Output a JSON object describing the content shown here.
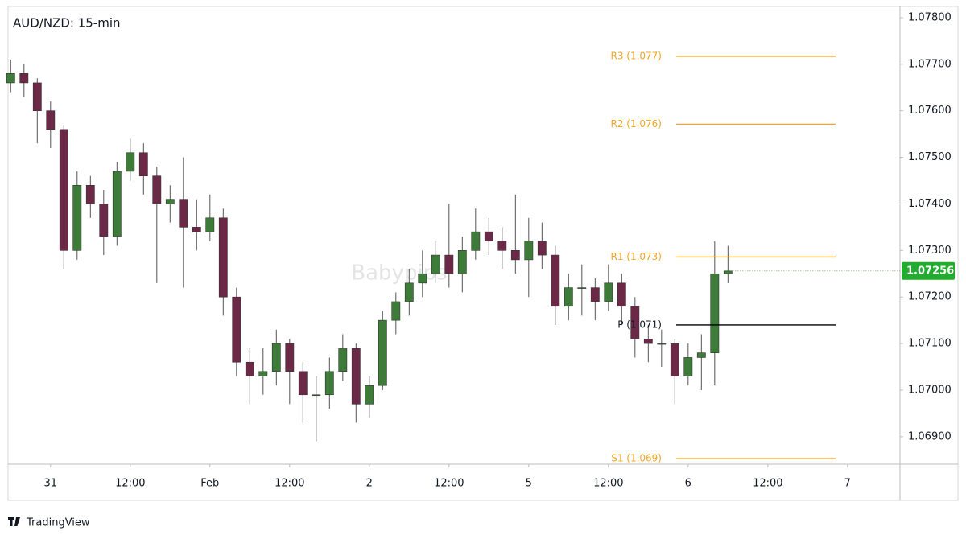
{
  "chart_data": {
    "type": "candlestick",
    "title": "AUD/NZD: 15-min",
    "watermark": "Babypips",
    "footer": "TradingView",
    "up_color": "#3d7b38",
    "down_color": "#6b2847",
    "x": [
      -6,
      -4,
      -2,
      0,
      2,
      4,
      6,
      8,
      10,
      12,
      14,
      16,
      18,
      20,
      22,
      24,
      26,
      28,
      30,
      32,
      34,
      36,
      38,
      40,
      42,
      44,
      46,
      48,
      50,
      52,
      54,
      56,
      58,
      60,
      62,
      64,
      66,
      68,
      70,
      72,
      74,
      76,
      78,
      80,
      82,
      84,
      86,
      88,
      90,
      92,
      94,
      96,
      98,
      100,
      102
    ],
    "open": [
      1.0766,
      1.0768,
      1.0766,
      1.076,
      1.0756,
      1.073,
      1.0744,
      1.074,
      1.0733,
      1.0747,
      1.0751,
      1.0746,
      1.074,
      1.0741,
      1.0735,
      1.0734,
      1.0737,
      1.072,
      1.0706,
      1.0703,
      1.0704,
      1.071,
      1.0704,
      1.0699,
      1.0699,
      1.0704,
      1.0709,
      1.0697,
      1.0701,
      1.0715,
      1.0719,
      1.0723,
      1.0725,
      1.0729,
      1.0725,
      1.073,
      1.0734,
      1.0732,
      1.073,
      1.0728,
      1.0732,
      1.0729,
      1.0718,
      1.0722,
      1.0722,
      1.0719,
      1.0723,
      1.0718,
      1.0711,
      1.071,
      1.071,
      1.0703,
      1.0707,
      1.0708,
      1.0725
    ],
    "high": [
      1.0771,
      1.077,
      1.0767,
      1.0762,
      1.0757,
      1.0747,
      1.0746,
      1.0743,
      1.0749,
      1.0754,
      1.0753,
      1.0748,
      1.0744,
      1.075,
      1.0741,
      1.0742,
      1.0739,
      1.0722,
      1.0709,
      1.0709,
      1.0713,
      1.0711,
      1.0706,
      1.0703,
      1.0707,
      1.0712,
      1.071,
      1.0703,
      1.0717,
      1.0721,
      1.0726,
      1.073,
      1.0732,
      1.074,
      1.0733,
      1.0739,
      1.0737,
      1.0735,
      1.0742,
      1.0737,
      1.0736,
      1.0731,
      1.0725,
      1.0727,
      1.0724,
      1.0727,
      1.0725,
      1.072,
      1.0714,
      1.0713,
      1.0711,
      1.071,
      1.0712,
      1.0732,
      1.0731
    ],
    "low": [
      1.0764,
      1.0763,
      1.0753,
      1.0752,
      1.0726,
      1.0728,
      1.0737,
      1.0729,
      1.0731,
      1.0745,
      1.0742,
      1.0723,
      1.0736,
      1.0722,
      1.073,
      1.0732,
      1.0716,
      1.0703,
      1.0697,
      1.0699,
      1.0701,
      1.0697,
      1.0693,
      1.0689,
      1.0696,
      1.0702,
      1.0693,
      1.0694,
      1.07,
      1.0712,
      1.0716,
      1.072,
      1.0723,
      1.0722,
      1.0721,
      1.0728,
      1.0729,
      1.0726,
      1.0725,
      1.072,
      1.0726,
      1.0714,
      1.0715,
      1.0716,
      1.0715,
      1.0717,
      1.0714,
      1.0707,
      1.0706,
      1.0705,
      1.0697,
      1.0701,
      1.07,
      1.0701,
      1.0723
    ],
    "close": [
      1.0768,
      1.0766,
      1.076,
      1.0756,
      1.073,
      1.0744,
      1.074,
      1.0733,
      1.0747,
      1.0751,
      1.0746,
      1.074,
      1.0741,
      1.0735,
      1.0734,
      1.0737,
      1.072,
      1.0706,
      1.0703,
      1.0704,
      1.071,
      1.0704,
      1.0699,
      1.0699,
      1.0704,
      1.0709,
      1.0697,
      1.0701,
      1.0715,
      1.0719,
      1.0723,
      1.0725,
      1.0729,
      1.0725,
      1.073,
      1.0734,
      1.0732,
      1.073,
      1.0728,
      1.0732,
      1.0729,
      1.0718,
      1.0722,
      1.0722,
      1.0719,
      1.0723,
      1.0718,
      1.0711,
      1.071,
      1.071,
      1.0703,
      1.0707,
      1.0708,
      1.0725,
      1.07256
    ],
    "xlim": [
      -6.4,
      127.9
    ],
    "xticks": [
      {
        "value": 0,
        "label": "31"
      },
      {
        "value": 12,
        "label": "12:00"
      },
      {
        "value": 24,
        "label": "Feb"
      },
      {
        "value": 36,
        "label": "12:00"
      },
      {
        "value": 48,
        "label": "2"
      },
      {
        "value": 60,
        "label": "12:00"
      },
      {
        "value": 72,
        "label": "5"
      },
      {
        "value": 84,
        "label": "12:00"
      },
      {
        "value": 96,
        "label": "6"
      },
      {
        "value": 108,
        "label": "12:00"
      },
      {
        "value": 120,
        "label": "7"
      }
    ],
    "ylim": [
      1.06841,
      1.07824
    ],
    "yticks": [
      {
        "value": 1.069,
        "label": "1.06900"
      },
      {
        "value": 1.07,
        "label": "1.07000"
      },
      {
        "value": 1.071,
        "label": "1.07100"
      },
      {
        "value": 1.072,
        "label": "1.07200"
      },
      {
        "value": 1.073,
        "label": "1.07300"
      },
      {
        "value": 1.074,
        "label": "1.07400"
      },
      {
        "value": 1.075,
        "label": "1.07500"
      },
      {
        "value": 1.076,
        "label": "1.07600"
      },
      {
        "value": 1.077,
        "label": "1.07700"
      },
      {
        "value": 1.078,
        "label": "1.07800"
      }
    ],
    "levels": [
      {
        "label": "R3 (1.077)",
        "value": 1.07717,
        "color": "#f5a623"
      },
      {
        "label": "R2 (1.076)",
        "value": 1.07571,
        "color": "#f5a623"
      },
      {
        "label": "R1 (1.073)",
        "value": 1.07286,
        "color": "#f5a623"
      },
      {
        "label": "P (1.071)",
        "value": 1.0714,
        "color": "#000000"
      },
      {
        "label": "S1 (1.069)",
        "value": 1.06853,
        "color": "#f5a623"
      }
    ]
  }
}
